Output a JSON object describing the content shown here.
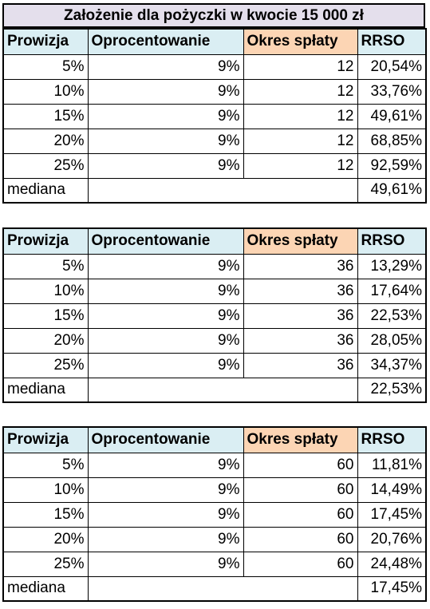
{
  "title": "Założenie dla pożyczki w kwocie 15 000 zł",
  "headers": {
    "prowizja": "Prowizja",
    "oprocentowanie": "Oprocentowanie",
    "okres": "Okres spłaty",
    "rrso": "RRSO"
  },
  "median_label": "mediana",
  "colors": {
    "title_bg": "#e4dfec",
    "header_blue": "#daeef3",
    "header_orange": "#fcd5b4"
  },
  "tables": [
    {
      "rows": [
        {
          "prowizja": "5%",
          "oprocentowanie": "9%",
          "okres": "12",
          "rrso": "20,54%"
        },
        {
          "prowizja": "10%",
          "oprocentowanie": "9%",
          "okres": "12",
          "rrso": "33,76%"
        },
        {
          "prowizja": "15%",
          "oprocentowanie": "9%",
          "okres": "12",
          "rrso": "49,61%"
        },
        {
          "prowizja": "20%",
          "oprocentowanie": "9%",
          "okres": "12",
          "rrso": "68,85%"
        },
        {
          "prowizja": "25%",
          "oprocentowanie": "9%",
          "okres": "12",
          "rrso": "92,59%"
        }
      ],
      "median": "49,61%"
    },
    {
      "rows": [
        {
          "prowizja": "5%",
          "oprocentowanie": "9%",
          "okres": "36",
          "rrso": "13,29%"
        },
        {
          "prowizja": "10%",
          "oprocentowanie": "9%",
          "okres": "36",
          "rrso": "17,64%"
        },
        {
          "prowizja": "15%",
          "oprocentowanie": "9%",
          "okres": "36",
          "rrso": "22,53%"
        },
        {
          "prowizja": "20%",
          "oprocentowanie": "9%",
          "okres": "36",
          "rrso": "28,05%"
        },
        {
          "prowizja": "25%",
          "oprocentowanie": "9%",
          "okres": "36",
          "rrso": "34,37%"
        }
      ],
      "median": "22,53%"
    },
    {
      "rows": [
        {
          "prowizja": "5%",
          "oprocentowanie": "9%",
          "okres": "60",
          "rrso": "11,81%"
        },
        {
          "prowizja": "10%",
          "oprocentowanie": "9%",
          "okres": "60",
          "rrso": "14,49%"
        },
        {
          "prowizja": "15%",
          "oprocentowanie": "9%",
          "okres": "60",
          "rrso": "17,45%"
        },
        {
          "prowizja": "20%",
          "oprocentowanie": "9%",
          "okres": "60",
          "rrso": "20,76%"
        },
        {
          "prowizja": "25%",
          "oprocentowanie": "9%",
          "okres": "60",
          "rrso": "24,48%"
        }
      ],
      "median": "17,45%"
    }
  ]
}
